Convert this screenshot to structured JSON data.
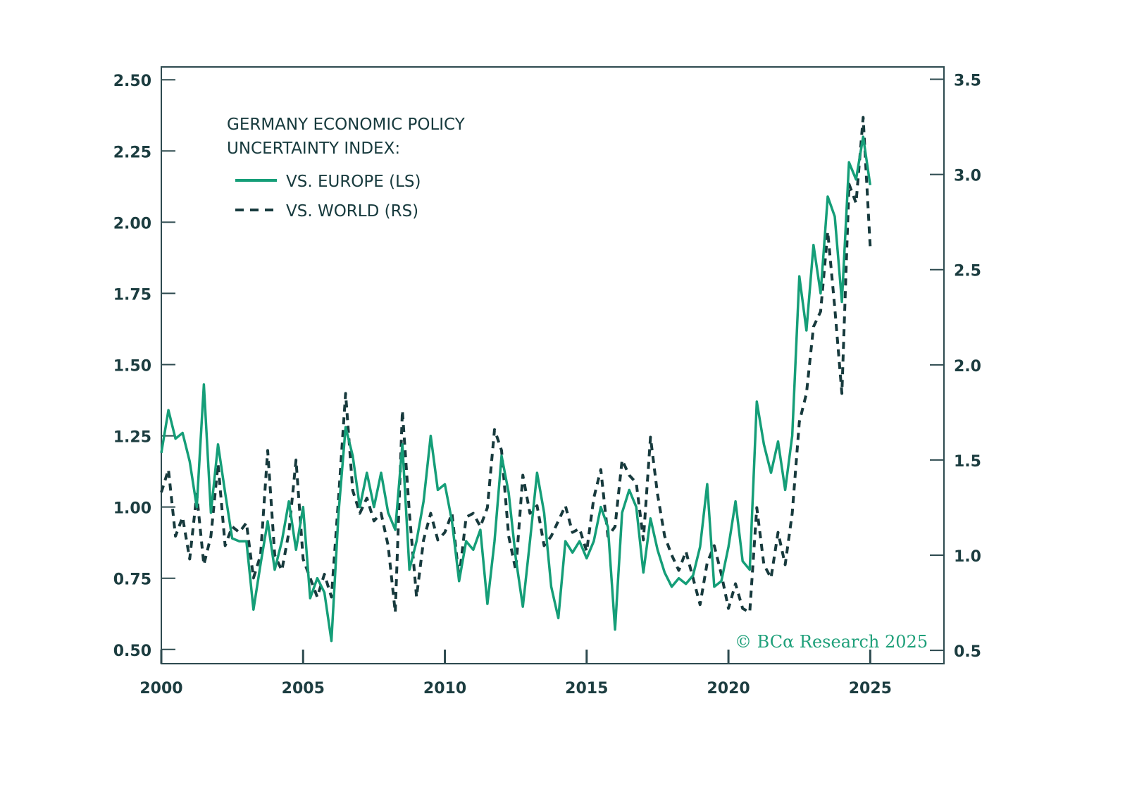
{
  "chart_data": {
    "type": "line",
    "title": "GERMANY ECONOMIC POLICY UNCERTAINTY INDEX:",
    "title_lines": [
      "GERMANY ECONOMIC POLICY",
      "UNCERTAINTY INDEX:"
    ],
    "xlabel": "",
    "ylabel_left": "",
    "ylabel_right": "",
    "x_ticks": [
      "2000",
      "2005",
      "2010",
      "2015",
      "2020",
      "2025"
    ],
    "x_tick_values": [
      2000,
      2005,
      2010,
      2015,
      2020,
      2025
    ],
    "xlim": [
      2000,
      2027.6
    ],
    "y_left_ticks": [
      "0.50",
      "0.75",
      "1.00",
      "1.25",
      "1.50",
      "1.75",
      "2.00",
      "2.25",
      "2.50"
    ],
    "y_left_tick_values": [
      0.5,
      0.75,
      1.0,
      1.25,
      1.5,
      1.75,
      2.0,
      2.25,
      2.5
    ],
    "ylim_left": [
      0.45,
      2.545
    ],
    "y_right_ticks": [
      "0.5",
      "1.0",
      "1.5",
      "2.0",
      "2.5",
      "3.0",
      "3.5"
    ],
    "y_right_tick_values": [
      0.5,
      1.0,
      1.5,
      2.0,
      2.5,
      3.0,
      3.5
    ],
    "ylim_right": [
      0.43,
      3.565
    ],
    "grid": false,
    "legend_position": "top-left",
    "annotation": "© BCα Research 2025",
    "colors": {
      "europe": "#159e78",
      "world": "#173a3d",
      "axis": "#2d4a4f",
      "text": "#173a3d",
      "credit": "#1fa07a"
    },
    "x_start": 2000.0,
    "x_step": 0.25,
    "series": [
      {
        "name": "VS. EUROPE (LS)",
        "axis": "left",
        "style": "solid",
        "values": [
          1.19,
          1.34,
          1.24,
          1.26,
          1.16,
          1.0,
          1.43,
          0.98,
          1.22,
          1.05,
          0.89,
          0.88,
          0.88,
          0.64,
          0.8,
          0.95,
          0.78,
          0.88,
          1.02,
          0.85,
          1.0,
          0.68,
          0.75,
          0.7,
          0.53,
          0.98,
          1.28,
          1.18,
          1.0,
          1.12,
          1.0,
          1.12,
          0.98,
          0.92,
          1.22,
          0.78,
          0.88,
          1.02,
          1.25,
          1.06,
          1.08,
          0.95,
          0.74,
          0.88,
          0.85,
          0.92,
          0.66,
          0.88,
          1.18,
          1.05,
          0.82,
          0.65,
          0.88,
          1.12,
          0.98,
          0.72,
          0.61,
          0.88,
          0.84,
          0.88,
          0.82,
          0.88,
          1.0,
          0.93,
          0.57,
          0.98,
          1.06,
          1.0,
          0.77,
          0.96,
          0.85,
          0.77,
          0.72,
          0.75,
          0.73,
          0.76,
          0.86,
          1.08,
          0.72,
          0.74,
          0.86,
          1.02,
          0.81,
          0.78,
          1.37,
          1.22,
          1.12,
          1.23,
          1.06,
          1.25,
          1.81,
          1.62,
          1.92,
          1.75,
          2.09,
          2.02,
          1.72,
          2.21,
          2.15,
          2.3,
          2.13
        ]
      },
      {
        "name": "VS. WORLD (RS)",
        "axis": "right",
        "style": "dashed",
        "values": [
          1.33,
          1.45,
          1.1,
          1.2,
          0.98,
          1.32,
          0.95,
          1.1,
          1.48,
          1.05,
          1.15,
          1.12,
          1.17,
          0.88,
          1.0,
          1.55,
          1.0,
          0.92,
          1.12,
          1.5,
          0.98,
          0.88,
          0.78,
          0.9,
          0.78,
          1.3,
          1.85,
          1.34,
          1.22,
          1.3,
          1.18,
          1.22,
          1.05,
          0.7,
          1.76,
          1.22,
          0.78,
          1.08,
          1.22,
          1.08,
          1.12,
          1.22,
          0.88,
          1.2,
          1.22,
          1.15,
          1.25,
          1.66,
          1.55,
          1.1,
          0.92,
          1.42,
          1.22,
          1.26,
          1.05,
          1.1,
          1.18,
          1.26,
          1.12,
          1.14,
          1.02,
          1.3,
          1.45,
          1.1,
          1.15,
          1.5,
          1.42,
          1.38,
          1.08,
          1.62,
          1.32,
          1.1,
          1.0,
          0.92,
          1.02,
          0.88,
          0.74,
          0.96,
          1.05,
          0.9,
          0.72,
          0.85,
          0.72,
          0.7,
          1.25,
          0.95,
          0.88,
          1.12,
          0.95,
          1.22,
          1.7,
          1.85,
          2.2,
          2.28,
          2.7,
          2.3,
          1.85,
          2.95,
          2.85,
          3.3,
          2.62
        ]
      }
    ]
  }
}
